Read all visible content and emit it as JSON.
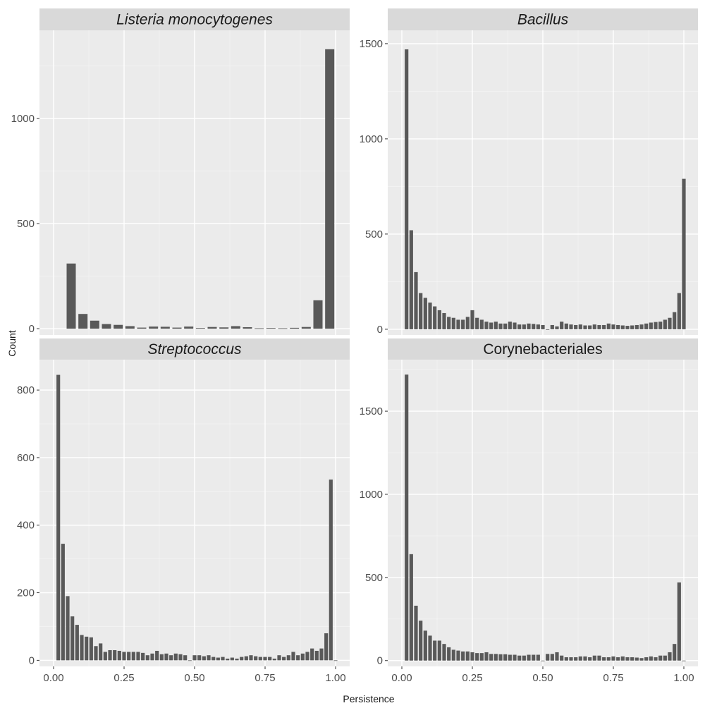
{
  "chart_data": {
    "type": "bar",
    "xlabel": "Persistence",
    "ylabel": "Count",
    "x_ticks": [
      "0.00",
      "0.25",
      "0.50",
      "0.75",
      "1.00"
    ],
    "grid": true,
    "panels": [
      {
        "title": "Listeria monocytogenes",
        "title_italic": true,
        "xlim": [
          -0.05,
          1.05
        ],
        "ylim": [
          -30,
          1420
        ],
        "y_ticks": [
          0,
          500,
          1000
        ],
        "bins": {
          "x": [
            0.0625,
            0.1042,
            0.1458,
            0.1875,
            0.2292,
            0.2708,
            0.3125,
            0.3542,
            0.3958,
            0.4375,
            0.4792,
            0.5208,
            0.5625,
            0.6042,
            0.6458,
            0.6875,
            0.7292,
            0.7708,
            0.8125,
            0.8542,
            0.8958,
            0.9375,
            0.9792
          ],
          "values": [
            310,
            70,
            38,
            22,
            18,
            12,
            5,
            10,
            9,
            5,
            10,
            3,
            8,
            6,
            12,
            7,
            2,
            3,
            2,
            4,
            8,
            135,
            1330
          ]
        }
      },
      {
        "title": "Bacillus",
        "title_italic": true,
        "xlim": [
          -0.05,
          1.05
        ],
        "ylim": [
          -30,
          1570
        ],
        "y_ticks": [
          0,
          500,
          1000,
          1500
        ],
        "bins": {
          "x": [
            0.0167,
            0.0333,
            0.05,
            0.0667,
            0.0833,
            0.1,
            0.1167,
            0.1333,
            0.15,
            0.1667,
            0.1833,
            0.2,
            0.2167,
            0.2333,
            0.25,
            0.2667,
            0.2833,
            0.3,
            0.3167,
            0.3333,
            0.35,
            0.3667,
            0.3833,
            0.4,
            0.4167,
            0.4333,
            0.45,
            0.4667,
            0.4833,
            0.5,
            0.5167,
            0.5333,
            0.55,
            0.5667,
            0.5833,
            0.6,
            0.6167,
            0.6333,
            0.65,
            0.6667,
            0.6833,
            0.7,
            0.7167,
            0.7333,
            0.75,
            0.7667,
            0.7833,
            0.8,
            0.8167,
            0.8333,
            0.85,
            0.8667,
            0.8833,
            0.9,
            0.9167,
            0.9333,
            0.95,
            0.9667,
            0.9833,
            1.0
          ],
          "values": [
            1470,
            520,
            300,
            190,
            165,
            140,
            120,
            100,
            85,
            65,
            60,
            50,
            50,
            65,
            100,
            60,
            50,
            40,
            35,
            40,
            30,
            30,
            40,
            35,
            25,
            25,
            30,
            28,
            25,
            22,
            0,
            22,
            15,
            40,
            30,
            25,
            22,
            25,
            20,
            20,
            25,
            22,
            22,
            30,
            25,
            22,
            20,
            18,
            20,
            22,
            25,
            30,
            35,
            38,
            40,
            50,
            60,
            90,
            190,
            790
          ]
        }
      },
      {
        "title": "Streptococcus",
        "title_italic": true,
        "xlim": [
          -0.05,
          1.05
        ],
        "ylim": [
          -18,
          890
        ],
        "y_ticks": [
          0,
          200,
          400,
          600,
          800
        ],
        "bins": {
          "x": [
            0.0167,
            0.0333,
            0.05,
            0.0667,
            0.0833,
            0.1,
            0.1167,
            0.1333,
            0.15,
            0.1667,
            0.1833,
            0.2,
            0.2167,
            0.2333,
            0.25,
            0.2667,
            0.2833,
            0.3,
            0.3167,
            0.3333,
            0.35,
            0.3667,
            0.3833,
            0.4,
            0.4167,
            0.4333,
            0.45,
            0.4667,
            0.4833,
            0.5,
            0.5167,
            0.5333,
            0.55,
            0.5667,
            0.5833,
            0.6,
            0.6167,
            0.6333,
            0.65,
            0.6667,
            0.6833,
            0.7,
            0.7167,
            0.7333,
            0.75,
            0.7667,
            0.7833,
            0.8,
            0.8167,
            0.8333,
            0.85,
            0.8667,
            0.8833,
            0.9,
            0.9167,
            0.9333,
            0.95,
            0.9667,
            0.9833,
            1.0
          ],
          "values": [
            845,
            345,
            190,
            130,
            105,
            75,
            70,
            68,
            42,
            50,
            25,
            30,
            30,
            28,
            25,
            25,
            25,
            25,
            22,
            15,
            20,
            28,
            18,
            20,
            15,
            20,
            18,
            15,
            0,
            15,
            15,
            12,
            15,
            10,
            8,
            10,
            5,
            8,
            5,
            10,
            12,
            15,
            12,
            10,
            10,
            10,
            5,
            15,
            10,
            15,
            25,
            15,
            20,
            25,
            35,
            28,
            35,
            80,
            535,
            0
          ]
        }
      },
      {
        "title": "Corynebacteriales",
        "title_italic": false,
        "xlim": [
          -0.05,
          1.05
        ],
        "ylim": [
          -35,
          1810
        ],
        "y_ticks": [
          0,
          500,
          1000,
          1500
        ],
        "bins": {
          "x": [
            0.0167,
            0.0333,
            0.05,
            0.0667,
            0.0833,
            0.1,
            0.1167,
            0.1333,
            0.15,
            0.1667,
            0.1833,
            0.2,
            0.2167,
            0.2333,
            0.25,
            0.2667,
            0.2833,
            0.3,
            0.3167,
            0.3333,
            0.35,
            0.3667,
            0.3833,
            0.4,
            0.4167,
            0.4333,
            0.45,
            0.4667,
            0.4833,
            0.5,
            0.5167,
            0.5333,
            0.55,
            0.5667,
            0.5833,
            0.6,
            0.6167,
            0.6333,
            0.65,
            0.6667,
            0.6833,
            0.7,
            0.7167,
            0.7333,
            0.75,
            0.7667,
            0.7833,
            0.8,
            0.8167,
            0.8333,
            0.85,
            0.8667,
            0.8833,
            0.9,
            0.9167,
            0.9333,
            0.95,
            0.9667,
            0.9833,
            1.0
          ],
          "values": [
            1720,
            640,
            330,
            240,
            180,
            150,
            120,
            120,
            100,
            80,
            65,
            60,
            55,
            55,
            50,
            45,
            45,
            50,
            40,
            40,
            38,
            38,
            35,
            35,
            30,
            30,
            35,
            35,
            35,
            0,
            40,
            40,
            50,
            30,
            20,
            20,
            20,
            25,
            25,
            20,
            30,
            30,
            20,
            20,
            25,
            20,
            25,
            20,
            20,
            18,
            15,
            20,
            25,
            20,
            30,
            30,
            50,
            100,
            470,
            0
          ]
        }
      }
    ]
  }
}
